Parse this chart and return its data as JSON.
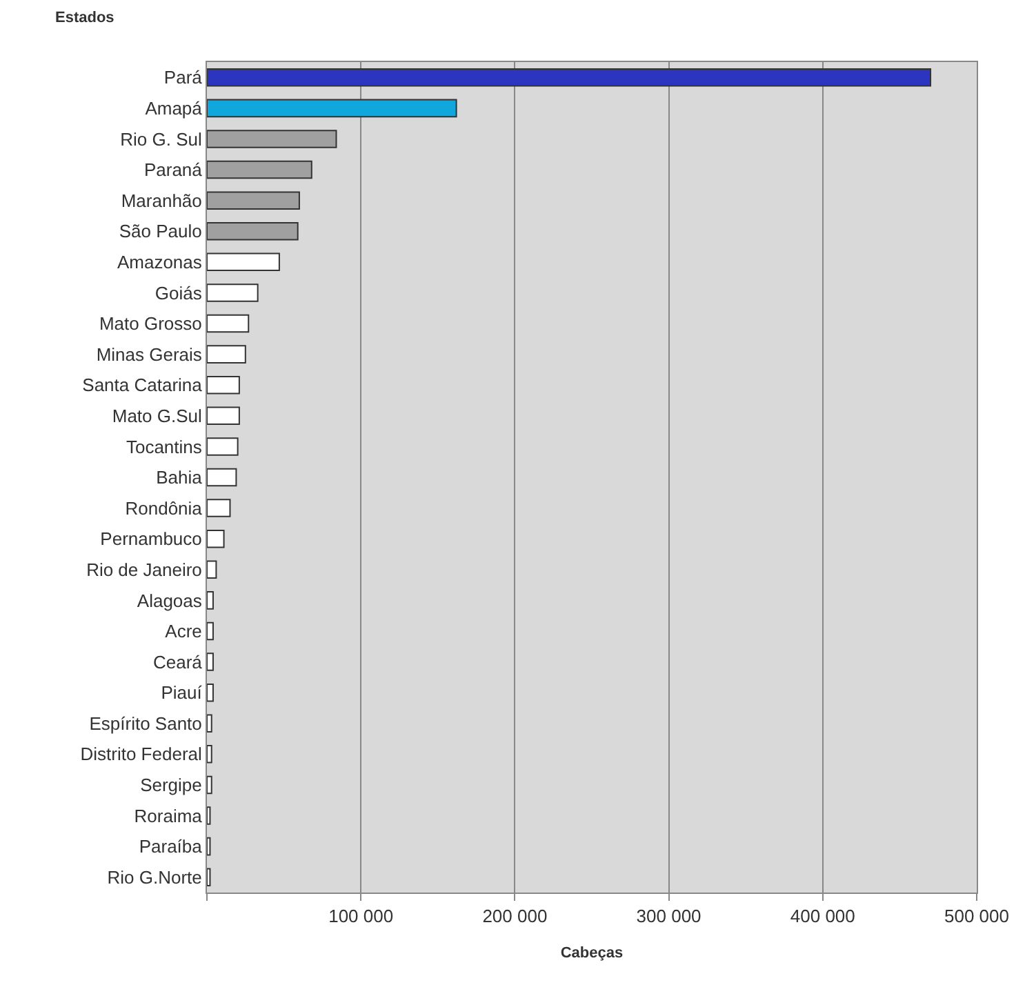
{
  "chart_data": {
    "type": "bar",
    "orientation": "horizontal",
    "ylabel": "Estados",
    "xlabel": "Cabeças",
    "categories": [
      "Pará",
      "Amapá",
      "Rio G. Sul",
      "Paraná",
      "Maranhão",
      "São Paulo",
      "Amazonas",
      "Goiás",
      "Mato Grosso",
      "Minas Gerais",
      "Santa Catarina",
      "Mato G.Sul",
      "Tocantins",
      "Bahia",
      "Rondônia",
      "Pernambuco",
      "Rio de Janeiro",
      "Alagoas",
      "Acre",
      "Ceará",
      "Piauí",
      "Espírito Santo",
      "Distrito Federal",
      "Sergipe",
      "Roraima",
      "Paraíba",
      "Rio G.Norte"
    ],
    "values": [
      470000,
      162000,
      84000,
      68000,
      60000,
      59000,
      47000,
      33000,
      27000,
      25000,
      21000,
      21000,
      20000,
      19000,
      15000,
      11000,
      6000,
      4000,
      4000,
      4000,
      4000,
      3000,
      3000,
      3000,
      2000,
      2000,
      2000
    ],
    "colors": [
      "#2b35c0",
      "#10a8dc",
      "#a0a0a0",
      "#a0a0a0",
      "#a0a0a0",
      "#a0a0a0",
      "#ffffff",
      "#ffffff",
      "#ffffff",
      "#ffffff",
      "#ffffff",
      "#ffffff",
      "#ffffff",
      "#ffffff",
      "#ffffff",
      "#ffffff",
      "#ffffff",
      "#ffffff",
      "#ffffff",
      "#ffffff",
      "#ffffff",
      "#ffffff",
      "#ffffff",
      "#ffffff",
      "#ffffff",
      "#ffffff",
      "#ffffff"
    ],
    "xlim": [
      0,
      500000
    ],
    "xticks": [
      {
        "value": 0,
        "label": null
      },
      {
        "value": 100000,
        "label": "100 000"
      },
      {
        "value": 200000,
        "label": "200 000"
      },
      {
        "value": 300000,
        "label": "300 000"
      },
      {
        "value": 400000,
        "label": "400 000"
      },
      {
        "value": 500000,
        "label": "500 000"
      }
    ],
    "grid": "x"
  }
}
